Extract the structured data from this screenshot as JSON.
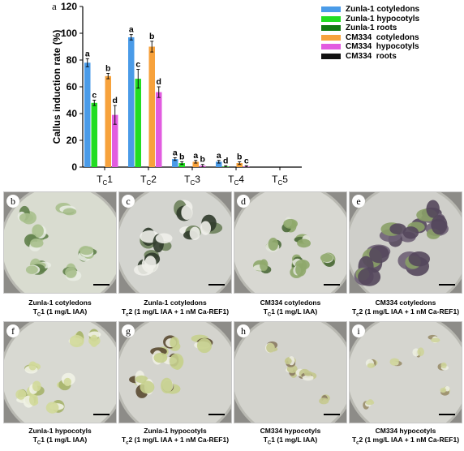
{
  "figure": {
    "panel_a": "a",
    "panels": [
      {
        "letter": "b",
        "title": "Zunla-1 cotyledons",
        "tc_main": "T",
        "tc_sub": "C",
        "tc_num": "1",
        "condition": " (1 mg/L IAA)",
        "tissue": "green-dense"
      },
      {
        "letter": "c",
        "title": "Zunla-1 cotyledons",
        "tc_main": "T",
        "tc_sub": "c",
        "tc_num": "2",
        "condition": " (1 mg/L IAA + 1 nM Ca-REF1)",
        "tissue": "white-large"
      },
      {
        "letter": "d",
        "title": "CM334 cotyledons",
        "tc_main": "T",
        "tc_sub": "C",
        "tc_num": "1",
        "condition": " (1 mg/L IAA)",
        "tissue": "green-small"
      },
      {
        "letter": "e",
        "title": "CM334 cotyledons",
        "tc_main": "T",
        "tc_sub": "c",
        "tc_num": "2",
        "condition": " (1 mg/L IAA + 1 nM Ca-REF1)",
        "tissue": "purple"
      },
      {
        "letter": "f",
        "title": "Zunla-1 hypocotyls",
        "tc_main": "T",
        "tc_sub": "C",
        "tc_num": "1",
        "condition": " (1 mg/L IAA)",
        "tissue": "yellow-small"
      },
      {
        "letter": "g",
        "title": "Zunla-1 hypocotyls",
        "tc_main": "T",
        "tc_sub": "c",
        "tc_num": "2",
        "condition": " (1 mg/L IAA + 1 nM Ca-REF1)",
        "tissue": "mixed-dark"
      },
      {
        "letter": "h",
        "title": "CM334 hypocotyls",
        "tc_main": "T",
        "tc_sub": "C",
        "tc_num": "1",
        "condition": " (1 mg/L IAA)",
        "tissue": "sparse"
      },
      {
        "letter": "i",
        "title": "CM334 hypocotyls",
        "tc_main": "T",
        "tc_sub": "c",
        "tc_num": "2",
        "condition": " (1 mg/L IAA + 1 nM Ca-REF1)",
        "tissue": "sparse-small"
      }
    ]
  },
  "chart_data": {
    "type": "bar",
    "ylabel": "Callus induction rate (%)",
    "ylim": [
      0,
      120
    ],
    "yticks": [
      0,
      20,
      40,
      60,
      80,
      100,
      120
    ],
    "categories": [
      {
        "main": "T",
        "sub": "C",
        "num": "1"
      },
      {
        "main": "T",
        "sub": "C",
        "num": "2"
      },
      {
        "main": "T",
        "sub": "C",
        "num": "3"
      },
      {
        "main": "T",
        "sub": "C",
        "num": "4"
      },
      {
        "main": "T",
        "sub": "C",
        "num": "5"
      }
    ],
    "legend_position": "top-right",
    "series": [
      {
        "name": "Zunla-1 cotyledons",
        "color": "#4a9be8",
        "values": [
          78,
          97,
          6,
          4,
          0
        ],
        "errors": [
          3,
          2,
          1,
          1,
          0
        ],
        "letters": [
          "a",
          "a",
          "a",
          "a",
          ""
        ]
      },
      {
        "name": "Zunla-1 hypocotyls",
        "color": "#22dd22",
        "values": [
          48,
          66,
          3,
          0.5,
          0
        ],
        "errors": [
          2,
          7,
          1,
          0.5,
          0
        ],
        "letters": [
          "c",
          "c",
          "b",
          "d",
          ""
        ]
      },
      {
        "name": "Zunla-1 roots",
        "color": "#117a11",
        "values": [
          0,
          0,
          0,
          0,
          0
        ],
        "errors": [
          0,
          0,
          0,
          0,
          0
        ],
        "letters": [
          "",
          "",
          "",
          "",
          ""
        ]
      },
      {
        "name": "CM334  cotyledons",
        "color": "#f7a23c",
        "values": [
          68,
          90,
          4,
          3,
          0
        ],
        "errors": [
          2,
          4,
          1,
          1,
          0
        ],
        "letters": [
          "b",
          "b",
          "a",
          "b",
          ""
        ]
      },
      {
        "name": "CM334  hypocotyls",
        "color": "#e25ce0",
        "values": [
          39,
          56,
          1,
          0.5,
          0
        ],
        "errors": [
          7,
          4,
          1,
          0.5,
          0
        ],
        "letters": [
          "d",
          "d",
          "b",
          "c",
          ""
        ]
      },
      {
        "name": "CM334  roots",
        "color": "#111111",
        "values": [
          0,
          0,
          0,
          0,
          0
        ],
        "errors": [
          0,
          0,
          0,
          0,
          0
        ],
        "letters": [
          "",
          "",
          "",
          "",
          ""
        ]
      }
    ]
  }
}
